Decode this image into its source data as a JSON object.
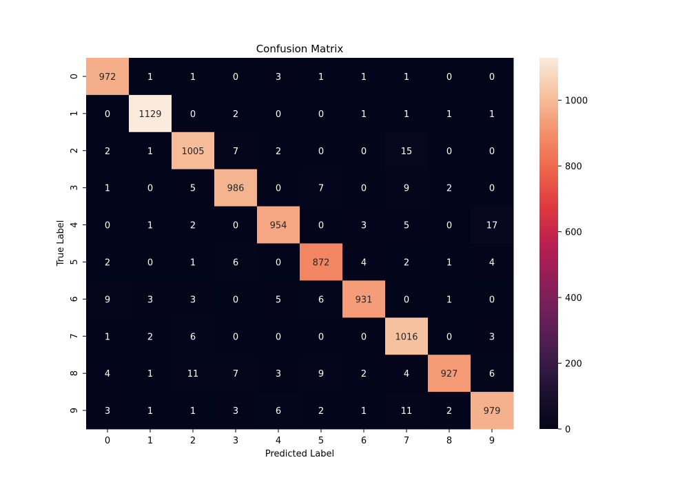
{
  "chart_data": {
    "type": "heatmap",
    "title": "Confusion Matrix",
    "xlabel": "Predicted Label",
    "ylabel": "True Label",
    "x_ticks": [
      "0",
      "1",
      "2",
      "3",
      "4",
      "5",
      "6",
      "7",
      "8",
      "9"
    ],
    "y_ticks": [
      "0",
      "1",
      "2",
      "3",
      "4",
      "5",
      "6",
      "7",
      "8",
      "9"
    ],
    "matrix": [
      [
        972,
        1,
        1,
        0,
        3,
        1,
        1,
        1,
        0,
        0
      ],
      [
        0,
        1129,
        0,
        2,
        0,
        0,
        1,
        1,
        1,
        1
      ],
      [
        2,
        1,
        1005,
        7,
        2,
        0,
        0,
        15,
        0,
        0
      ],
      [
        1,
        0,
        5,
        986,
        0,
        7,
        0,
        9,
        2,
        0
      ],
      [
        0,
        1,
        2,
        0,
        954,
        0,
        3,
        5,
        0,
        17
      ],
      [
        2,
        0,
        1,
        6,
        0,
        872,
        4,
        2,
        1,
        4
      ],
      [
        9,
        3,
        3,
        0,
        5,
        6,
        931,
        0,
        1,
        0
      ],
      [
        1,
        2,
        6,
        0,
        0,
        0,
        0,
        1016,
        0,
        3
      ],
      [
        4,
        1,
        11,
        7,
        3,
        9,
        2,
        4,
        927,
        6
      ],
      [
        3,
        1,
        1,
        3,
        6,
        2,
        1,
        11,
        2,
        979
      ]
    ],
    "colormap": "rocket",
    "value_range": [
      0,
      1129
    ],
    "colorbar": {
      "ticks": [
        0,
        200,
        400,
        600,
        800,
        1000
      ],
      "tick_labels": [
        "0",
        "200",
        "400",
        "600",
        "800",
        "1000"
      ]
    }
  }
}
